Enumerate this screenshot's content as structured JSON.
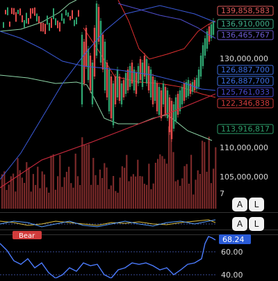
{
  "price_axis": {
    "labels": [
      "130,000,000",
      "110,000,000",
      "105,000,000"
    ],
    "badges": [
      {
        "value": "139,858,583",
        "color": "#e05a5a"
      },
      {
        "value": "136,910,000",
        "color": "#3fae8a"
      },
      {
        "value": "136,465,767",
        "color": "#6a5acd"
      },
      {
        "value": "126,887,700",
        "color": "#3d6ee0"
      },
      {
        "value": "126,887,700",
        "color": "#3d6ee0"
      },
      {
        "value": "125,761,033",
        "color": "#4a4ad0"
      },
      {
        "value": "122,346,838",
        "color": "#d23c3c"
      },
      {
        "value": "113,916,817",
        "color": "#2e9f6b"
      }
    ]
  },
  "pane2": {
    "auto_label": "A",
    "log_label": "L",
    "cut_label": "7"
  },
  "pane3": {
    "auto_label": "A",
    "log_label": "L"
  },
  "rsi_pane": {
    "bear_tag": "Bear",
    "badge_value": "68.24",
    "labels": [
      "60.00",
      "40.00"
    ]
  },
  "colors": {
    "up": "#2ea36f",
    "down": "#e04a4a",
    "ma_red": "#c0283a",
    "ma_blue": "#3b5bdb",
    "band_green": "#8fd6a8",
    "band_red": "#e03030",
    "volume": "#8a2f2f",
    "rsi_line": "#4c7cff"
  }
}
